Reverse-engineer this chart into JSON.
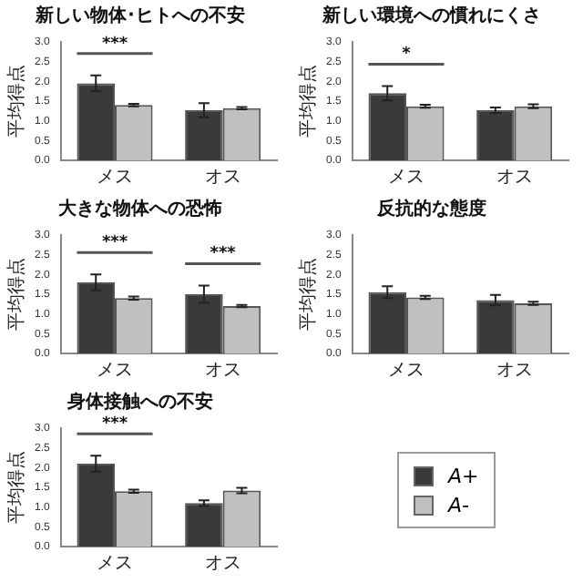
{
  "chart_data": [
    {
      "type": "bar",
      "title": "新しい物体･ヒトへの不安",
      "ylabel": "平均得点",
      "categories": [
        "メス",
        "オス"
      ],
      "ylim": [
        0,
        3
      ],
      "yticks": [
        {
          "value": 0,
          "label": "0.0"
        },
        {
          "value": 0.5,
          "label": "0.5"
        },
        {
          "value": 1,
          "label": "1.0"
        },
        {
          "value": 1.5,
          "label": "1.5"
        },
        {
          "value": 2,
          "label": "2.0"
        },
        {
          "value": 2.5,
          "label": "2.5"
        },
        {
          "value": 3,
          "label": "3.0"
        }
      ],
      "grid": false,
      "legend": false,
      "series": [
        {
          "color": "#3a3a3a",
          "values": [
            1.95,
            1.27
          ],
          "errors": [
            0.2,
            0.18
          ]
        },
        {
          "color": "#c0c0c0",
          "values": [
            1.4,
            1.32
          ],
          "errors": [
            0.03,
            0.03
          ]
        }
      ],
      "annotations": [
        "***"
      ]
    },
    {
      "type": "bar",
      "title": "新しい環境への慣れにくさ",
      "ylabel": "平均得点",
      "categories": [
        "メス",
        "オス"
      ],
      "ylim": [
        0,
        3
      ],
      "yticks": [
        {
          "value": 0,
          "label": "0.0"
        },
        {
          "value": 0.5,
          "label": "0.5"
        },
        {
          "value": 1,
          "label": "1.0"
        },
        {
          "value": 1.5,
          "label": "1.5"
        },
        {
          "value": 2,
          "label": "2.0"
        },
        {
          "value": 2.5,
          "label": "2.5"
        },
        {
          "value": 3,
          "label": "3.0"
        }
      ],
      "grid": false,
      "legend": false,
      "series": [
        {
          "color": "#3a3a3a",
          "values": [
            1.7,
            1.27
          ],
          "errors": [
            0.18,
            0.07
          ]
        },
        {
          "color": "#c0c0c0",
          "values": [
            1.37,
            1.37
          ],
          "errors": [
            0.04,
            0.05
          ]
        }
      ],
      "annotations": [
        "*"
      ]
    },
    {
      "type": "bar",
      "title": "大きな物体への恐怖",
      "ylabel": "平均得点",
      "categories": [
        "メス",
        "オス"
      ],
      "ylim": [
        0,
        3
      ],
      "yticks": [
        {
          "value": 0,
          "label": "0.0"
        },
        {
          "value": 0.5,
          "label": "0.5"
        },
        {
          "value": 1,
          "label": "1.0"
        },
        {
          "value": 1.5,
          "label": "1.5"
        },
        {
          "value": 2,
          "label": "2.0"
        },
        {
          "value": 2.5,
          "label": "2.5"
        },
        {
          "value": 3,
          "label": "3.0"
        }
      ],
      "grid": false,
      "legend": false,
      "series": [
        {
          "color": "#3a3a3a",
          "values": [
            1.8,
            1.5
          ],
          "errors": [
            0.2,
            0.22
          ]
        },
        {
          "color": "#c0c0c0",
          "values": [
            1.4,
            1.2
          ],
          "errors": [
            0.04,
            0.03
          ]
        }
      ],
      "annotations": [
        "***",
        "***"
      ]
    },
    {
      "type": "bar",
      "title": "反抗的な態度",
      "ylabel": "平均得点",
      "categories": [
        "メス",
        "オス"
      ],
      "ylim": [
        0,
        3
      ],
      "yticks": [
        {
          "value": 0,
          "label": "0.0"
        },
        {
          "value": 0.5,
          "label": "0.5"
        },
        {
          "value": 1,
          "label": "1.0"
        },
        {
          "value": 1.5,
          "label": "1.5"
        },
        {
          "value": 2,
          "label": "2.0"
        },
        {
          "value": 2.5,
          "label": "2.5"
        },
        {
          "value": 3,
          "label": "3.0"
        }
      ],
      "grid": false,
      "legend": false,
      "series": [
        {
          "color": "#3a3a3a",
          "values": [
            1.55,
            1.35
          ],
          "errors": [
            0.15,
            0.13
          ]
        },
        {
          "color": "#c0c0c0",
          "values": [
            1.42,
            1.27
          ],
          "errors": [
            0.04,
            0.04
          ]
        }
      ]
    },
    {
      "type": "bar",
      "title": "身体接触への不安",
      "ylabel": "平均得点",
      "categories": [
        "メス",
        "オス"
      ],
      "ylim": [
        0,
        3
      ],
      "yticks": [
        {
          "value": 0,
          "label": "0.0"
        },
        {
          "value": 0.5,
          "label": "0.5"
        },
        {
          "value": 1,
          "label": "1.0"
        },
        {
          "value": 1.5,
          "label": "1.5"
        },
        {
          "value": 2,
          "label": "2.0"
        },
        {
          "value": 2.5,
          "label": "2.5"
        },
        {
          "value": 3,
          "label": "3.0"
        }
      ],
      "grid": false,
      "legend": "right",
      "series": [
        {
          "name": "A+",
          "color": "#3a3a3a",
          "values": [
            2.1,
            1.1
          ],
          "errors": [
            0.2,
            0.07
          ]
        },
        {
          "name": "A-",
          "color": "#c0c0c0",
          "values": [
            1.4,
            1.42
          ],
          "errors": [
            0.04,
            0.07
          ]
        }
      ],
      "annotations": [
        "***"
      ]
    }
  ]
}
